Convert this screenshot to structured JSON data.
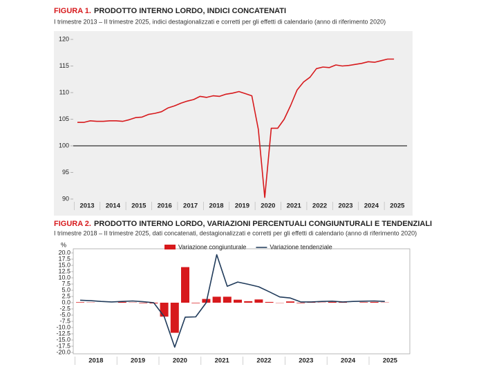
{
  "chart_data": [
    {
      "type": "line",
      "figure_label": "FIGURA 1.",
      "title": "PRODOTTO INTERNO LORDO, INDICI CONCATENATI",
      "subtitle": "I trimestre 2013 – II trimestre 2025, indici destagionalizzati e corretti per gli effetti di calendario (anno di riferimento 2020)",
      "categories": [
        "2013",
        null,
        null,
        null,
        "2014",
        null,
        null,
        null,
        "2015",
        null,
        null,
        null,
        "2016",
        null,
        null,
        null,
        "2017",
        null,
        null,
        null,
        "2018",
        null,
        null,
        null,
        "2019",
        null,
        null,
        null,
        "2020",
        null,
        null,
        null,
        "2021",
        null,
        null,
        null,
        "2022",
        null,
        null,
        null,
        "2023",
        null,
        null,
        null,
        "2024",
        null,
        null,
        null,
        "2025",
        null
      ],
      "series": [
        {
          "color": "#d7191c",
          "values": [
            104.4,
            104.4,
            104.7,
            104.6,
            104.6,
            104.7,
            104.7,
            104.6,
            104.9,
            105.3,
            105.4,
            105.9,
            106.1,
            106.4,
            107.1,
            107.5,
            108.0,
            108.4,
            108.7,
            109.3,
            109.1,
            109.4,
            109.3,
            109.7,
            109.9,
            110.2,
            109.8,
            109.4,
            103.1,
            90.3,
            103.3,
            103.3,
            105.0,
            107.6,
            110.5,
            112.0,
            112.9,
            114.5,
            114.8,
            114.7,
            115.2,
            115.0,
            115.1,
            115.3,
            115.5,
            115.8,
            115.7,
            116.0,
            116.3,
            116.3
          ]
        }
      ],
      "ylim": [
        90,
        120
      ],
      "yticks": [
        90,
        95,
        100,
        105,
        110,
        115,
        120
      ],
      "reference_line": 100,
      "background": "#efefef"
    },
    {
      "type": "combo",
      "figure_label": "FIGURA 2.",
      "title": "PRODOTTO INTERNO LORDO, VARIAZIONI PERCENTUALI CONGIUNTURALI E TENDENZIALI",
      "subtitle": "I trimestre 2018 – II trimestre 2025, dati concatenati, destagionalizzati e corretti per gli effetti di calendario (anno di riferimento 2020)",
      "y_label": "%",
      "categories": [
        "2018",
        null,
        null,
        null,
        "2019",
        null,
        null,
        null,
        "2020",
        null,
        null,
        null,
        "2021",
        null,
        null,
        null,
        "2022",
        null,
        null,
        null,
        "2023",
        null,
        null,
        null,
        "2024",
        null,
        null,
        null,
        "2025",
        null
      ],
      "series": [
        {
          "name": "Variazione congiunturale",
          "type": "bar",
          "color": "#d7191c",
          "values": [
            0.2,
            0.1,
            0.0,
            0.0,
            0.3,
            0.1,
            -0.2,
            -0.3,
            -5.6,
            -12.1,
            14.3,
            -0.2,
            1.5,
            2.4,
            2.4,
            1.2,
            0.6,
            1.3,
            0.3,
            -0.1,
            0.5,
            -0.2,
            0.2,
            0.1,
            0.3,
            0.2,
            0.0,
            0.2,
            0.3,
            0.1
          ]
        },
        {
          "name": "Variazione tendenziale",
          "type": "line",
          "color": "#1f3a5a",
          "values": [
            1.0,
            0.8,
            0.5,
            0.3,
            0.5,
            0.7,
            0.4,
            0.0,
            -5.6,
            -17.9,
            -5.8,
            -5.7,
            0.0,
            19.3,
            6.6,
            8.3,
            7.4,
            6.4,
            4.4,
            2.3,
            1.9,
            0.3,
            0.3,
            0.5,
            0.6,
            0.3,
            0.5,
            0.6,
            0.7,
            0.5
          ]
        }
      ],
      "ylim": [
        -20,
        20
      ],
      "yticks": [
        {
          "value": 20,
          "label": "20.0"
        },
        17.5,
        {
          "value": 15,
          "label": "15.0"
        },
        12.5,
        {
          "value": 10,
          "label": "10.0"
        },
        7.5,
        {
          "value": 5,
          "label": "5.0"
        },
        2.5,
        {
          "value": 0,
          "label": "0.0"
        },
        -2.5,
        {
          "value": -5,
          "label": "-5.0"
        },
        -7.5,
        {
          "value": -10,
          "label": "-10.0"
        },
        -12.5,
        {
          "value": -15,
          "label": "-15.0"
        },
        -17.5,
        {
          "value": -20,
          "label": "-20.0"
        }
      ],
      "legend": "top",
      "background": "#ffffff"
    }
  ]
}
